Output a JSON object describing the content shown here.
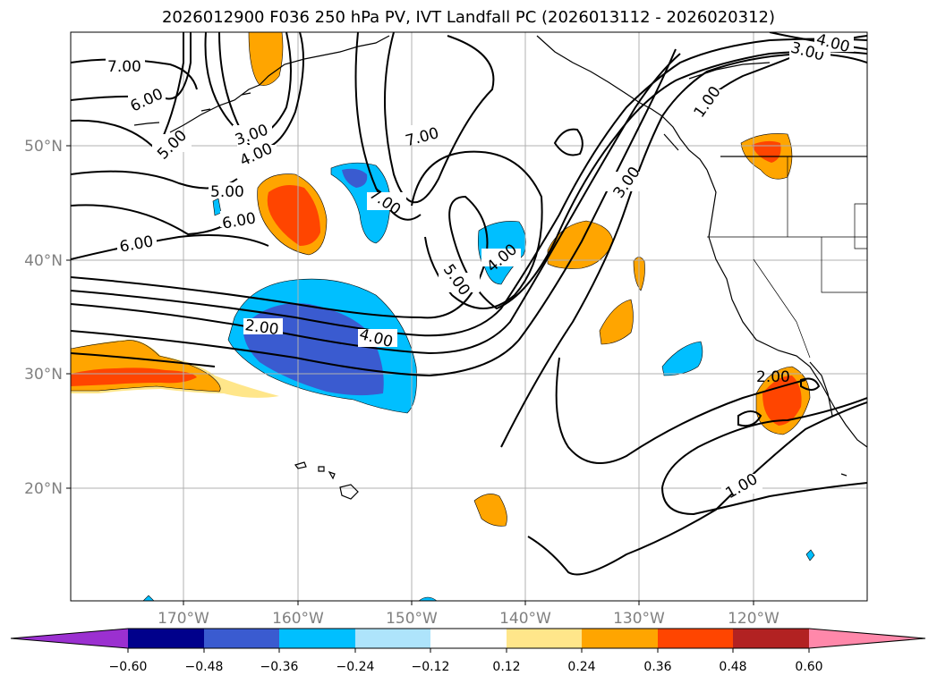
{
  "title": "2026012900 F036 250 hPa PV, IVT Landfall PC (2026013112 - 2026020312)",
  "lon_labels": [
    "170°W",
    "160°W",
    "150°W",
    "140°W",
    "130°W",
    "120°W"
  ],
  "lat_labels": [
    "50°N",
    "40°N",
    "30°N",
    "20°N"
  ],
  "colorbar": {
    "ticks": [
      "−0.60",
      "−0.48",
      "−0.36",
      "−0.24",
      "−0.12",
      "0.12",
      "0.24",
      "0.36",
      "0.48",
      "0.60"
    ],
    "colors": {
      "under": "#9b30d0",
      "n060": "#00008b",
      "n048": "#3a5bd0",
      "n036": "#00bfff",
      "n024": "#aee4fb",
      "zero": "#ffffff",
      "p012": "#ffe68a",
      "p024": "#ffa500",
      "p036": "#ff4500",
      "p048": "#b22222",
      "over": "#ff88aa"
    }
  },
  "contour_labels": [
    "7.00",
    "6.00",
    "5.00",
    "3.00",
    "4.00",
    "5.00",
    "6.00",
    "6.00",
    "7.00",
    "7.00",
    "2.00",
    "4.00",
    "5.00",
    "4.00",
    "3.00",
    "1.00",
    "3.00",
    "4.00",
    "2.00",
    "1.00"
  ],
  "icons": [
    "coastline-map",
    "contour-lines",
    "colorbar-arrows"
  ]
}
